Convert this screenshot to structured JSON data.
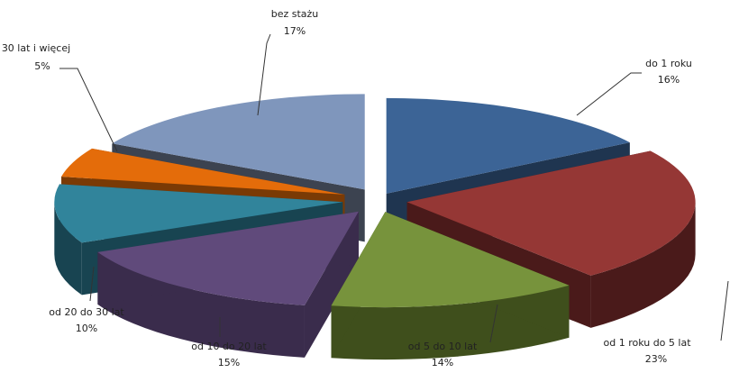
{
  "chart_data": {
    "type": "pie",
    "title": "",
    "three_d": true,
    "exploded": true,
    "legend": "none",
    "categories": [
      "do 1 roku",
      "od 1 roku do 5 lat",
      "od 5 do 10 lat",
      "od 10 do 20 lat",
      "od 20 do 30 lat",
      "30 lat i więcej",
      "bez stażu"
    ],
    "values": [
      16,
      23,
      14,
      15,
      10,
      5,
      17
    ],
    "value_labels": [
      "16%",
      "23%",
      "14%",
      "15%",
      "10%",
      "5%",
      "17%"
    ],
    "colors": [
      "#3c6496",
      "#953735",
      "#77933c",
      "#604a7b",
      "#31849b",
      "#e46c0a",
      "#7f96bc"
    ],
    "side_colors": [
      "#1f3550",
      "#4a1a1a",
      "#3f4f1c",
      "#3a2c4c",
      "#184451",
      "#7a3a05",
      "#3c4350"
    ]
  }
}
